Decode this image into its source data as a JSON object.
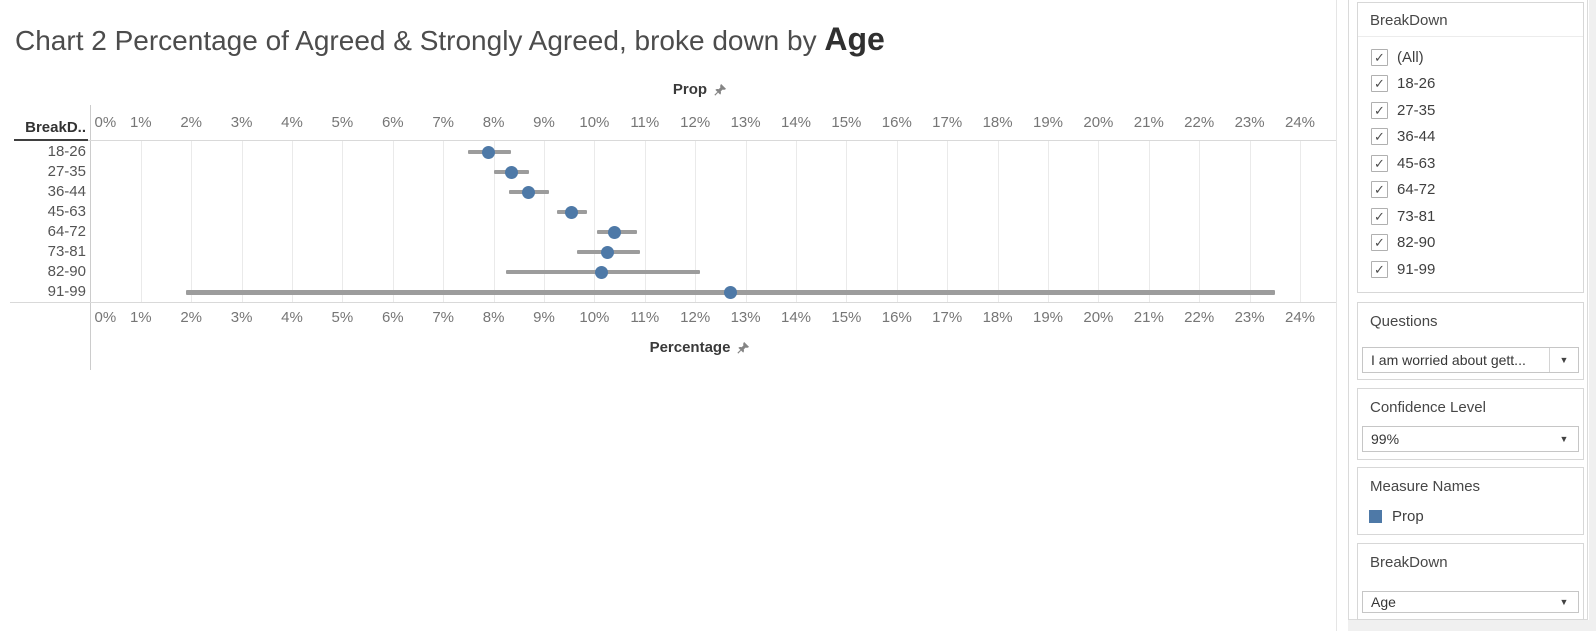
{
  "title": {
    "prefix": "Chart 2 Percentage of Agreed & Strongly Agreed, broke down by ",
    "emphasis": "Age"
  },
  "chart_data": {
    "type": "scatter",
    "subtype": "dot-plot-with-confidence-intervals",
    "top_axis_title": "Prop",
    "bottom_axis_title": "Percentage",
    "row_header": "BreakD..",
    "x_tick_labels": [
      "0%",
      "1%",
      "2%",
      "3%",
      "4%",
      "5%",
      "6%",
      "7%",
      "8%",
      "9%",
      "10%",
      "11%",
      "12%",
      "13%",
      "14%",
      "15%",
      "16%",
      "17%",
      "18%",
      "19%",
      "20%",
      "21%",
      "22%",
      "23%",
      "24%"
    ],
    "xlim": [
      0,
      24.7
    ],
    "grid": true,
    "categories": [
      "18-26",
      "27-35",
      "36-44",
      "45-63",
      "64-72",
      "73-81",
      "82-90",
      "91-99"
    ],
    "series": [
      {
        "name": "Prop",
        "color": "#4e79a7",
        "points": [
          {
            "category": "18-26",
            "value": 7.9,
            "ci_low": 7.5,
            "ci_high": 8.35
          },
          {
            "category": "27-35",
            "value": 8.35,
            "ci_low": 8.0,
            "ci_high": 8.7
          },
          {
            "category": "36-44",
            "value": 8.7,
            "ci_low": 8.3,
            "ci_high": 9.1
          },
          {
            "category": "45-63",
            "value": 9.55,
            "ci_low": 9.25,
            "ci_high": 9.85
          },
          {
            "category": "64-72",
            "value": 10.4,
            "ci_low": 10.05,
            "ci_high": 10.85
          },
          {
            "category": "73-81",
            "value": 10.25,
            "ci_low": 9.65,
            "ci_high": 10.9
          },
          {
            "category": "82-90",
            "value": 10.15,
            "ci_low": 8.25,
            "ci_high": 12.1
          },
          {
            "category": "91-99",
            "value": 12.7,
            "ci_low": 1.9,
            "ci_high": 23.5
          }
        ]
      }
    ]
  },
  "sidebar": {
    "filter_panel": {
      "title": "BreakDown",
      "items": [
        {
          "label": "(All)",
          "checked": true
        },
        {
          "label": "18-26",
          "checked": true
        },
        {
          "label": "27-35",
          "checked": true
        },
        {
          "label": "36-44",
          "checked": true
        },
        {
          "label": "45-63",
          "checked": true
        },
        {
          "label": "64-72",
          "checked": true
        },
        {
          "label": "73-81",
          "checked": true
        },
        {
          "label": "82-90",
          "checked": true
        },
        {
          "label": "91-99",
          "checked": true
        }
      ]
    },
    "questions_panel": {
      "title": "Questions",
      "value": "I am worried about gett..."
    },
    "confidence_panel": {
      "title": "Confidence Level",
      "value": "99%"
    },
    "legend_panel": {
      "title": "Measure Names",
      "items": [
        {
          "label": "Prop",
          "color": "#4e79a7"
        }
      ]
    },
    "breakdown_panel": {
      "title": "BreakDown",
      "value": "Age"
    }
  },
  "colors": {
    "mark_blue": "#4e79a7",
    "ci_bar_gray": "#9c9c9c",
    "gridline": "#eaeaea",
    "axis_line": "#cccccc",
    "tick_text": "#767676"
  }
}
